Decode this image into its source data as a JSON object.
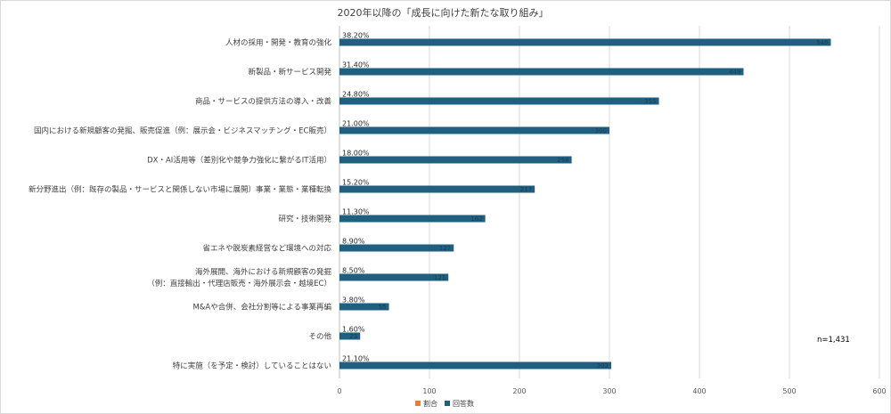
{
  "chart_data": {
    "type": "bar",
    "orientation": "horizontal",
    "title": "2020年以降の「成長に向けた新たな取り組み」",
    "categories": [
      "人材の採用・開発・教育の強化",
      "新製品・新サービス開発",
      "商品・サービスの提供方法の導入・改善",
      "国内における新規顧客の発掘、販売促進（例：展示会・ビジネスマッチング・EC販売）",
      "DX・AI活用等（差別化や競争力強化に繋がるIT活用）",
      "新分野進出（例：既存の製品・サービスと関係しない市場に展開）事業・業態・業種転換",
      "研究・技術開発",
      "省エネや脱炭素経営など環境への対応",
      "海外展開、海外における新規顧客の発掘\n（例：直接輸出・代理店販売・海外展示会・越境EC）",
      "M&Aや合併、会社分割等による事業再編",
      "その他",
      "特に実施（を予定・検討）していることはない"
    ],
    "series": [
      {
        "name": "割合",
        "color": "#ed7d31",
        "labels": [
          "38.20%",
          "31.40%",
          "24.80%",
          "21.00%",
          "18.00%",
          "15.20%",
          "11.30%",
          "8.90%",
          "8.50%",
          "3.80%",
          "1.60%",
          "21.10%"
        ],
        "values": [
          38.2,
          31.4,
          24.8,
          21.0,
          18.0,
          15.2,
          11.3,
          8.9,
          8.5,
          3.8,
          1.6,
          21.1
        ]
      },
      {
        "name": "回答数",
        "color": "#1f5f7f",
        "values": [
          546,
          449,
          355,
          300,
          258,
          217,
          162,
          127,
          121,
          55,
          23,
          302
        ]
      }
    ],
    "xlim": [
      0,
      600
    ],
    "xticks": [
      0,
      100,
      200,
      300,
      400,
      500,
      600
    ],
    "grid": true,
    "legend_position": "bottom",
    "annotation": "n=1,431"
  }
}
